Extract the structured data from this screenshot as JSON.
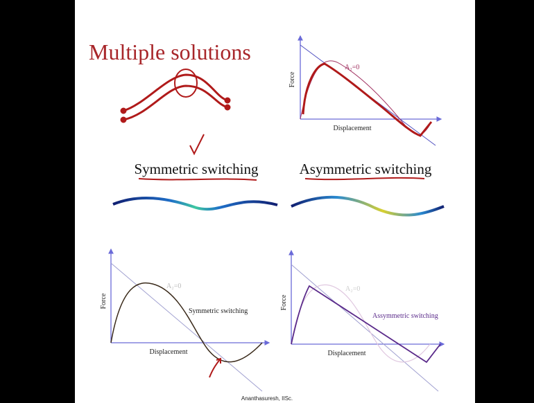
{
  "title": "Multiple solutions",
  "captions": [
    "Symmetric switching",
    "Asymmetric switching"
  ],
  "plots": [
    {
      "y_label": "Force",
      "x_label": "Displacement",
      "curve_label": "A₂=0"
    },
    {
      "y_label": "Force",
      "x_label": "Displacement",
      "curve_label": "A₂=0",
      "annotation": "Symmetric switching"
    },
    {
      "y_label": "Force",
      "x_label": "Displacement",
      "curve_label": "A₂=0",
      "annotation": "Assymmetric switching"
    }
  ],
  "footer": "Ananthasuresh, IISc."
}
